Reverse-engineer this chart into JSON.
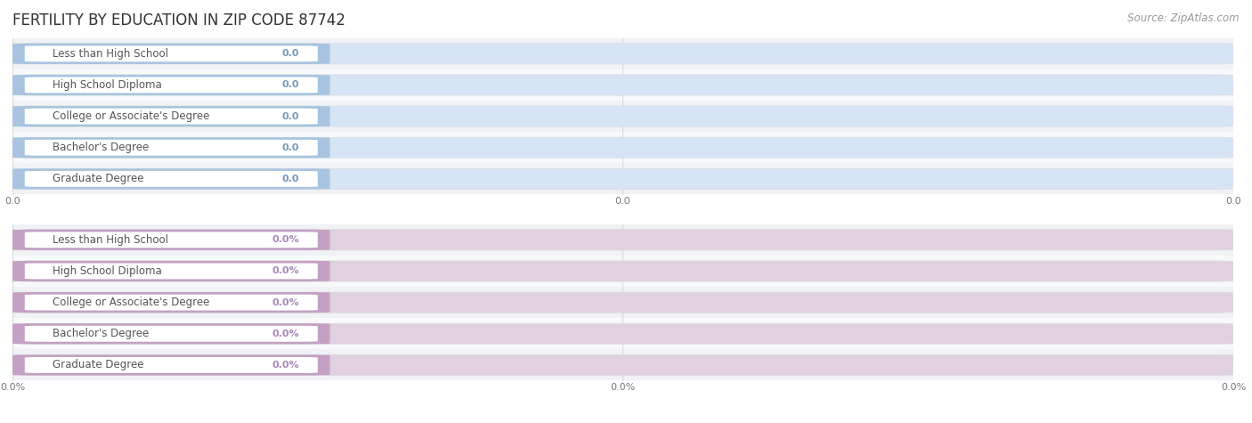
{
  "title": "FERTILITY BY EDUCATION IN ZIP CODE 87742",
  "source": "Source: ZipAtlas.com",
  "categories": [
    "Less than High School",
    "High School Diploma",
    "College or Associate's Degree",
    "Bachelor's Degree",
    "Graduate Degree"
  ],
  "top_values": [
    0.0,
    0.0,
    0.0,
    0.0,
    0.0
  ],
  "bottom_values": [
    0.0,
    0.0,
    0.0,
    0.0,
    0.0
  ],
  "top_bar_color": "#a8c4e0",
  "top_bar_bg": "#d6e4f5",
  "top_label_color": "#6b8ab0",
  "bottom_bar_color": "#c4a0c4",
  "bottom_bar_bg": "#e0d0e0",
  "bottom_label_color": "#9a7aaa",
  "row_bg_alt": "#f0f2f5",
  "row_bg_main": "#f8f9fa",
  "title_fontsize": 12,
  "source_fontsize": 8.5,
  "label_fontsize": 8.5,
  "value_fontsize": 8,
  "tick_fontsize": 8,
  "bar_height": 0.62,
  "fig_width": 14.06,
  "fig_height": 4.75,
  "background_color": "#ffffff",
  "grid_color": "#cccccc",
  "xtick_labels_top": [
    "0.0",
    "0.0",
    "0.0"
  ],
  "xtick_labels_bottom": [
    "0.0%",
    "0.0%",
    "0.0%"
  ],
  "value_label_color_top": "#7799bb",
  "value_label_color_bottom": "#aa88bb"
}
